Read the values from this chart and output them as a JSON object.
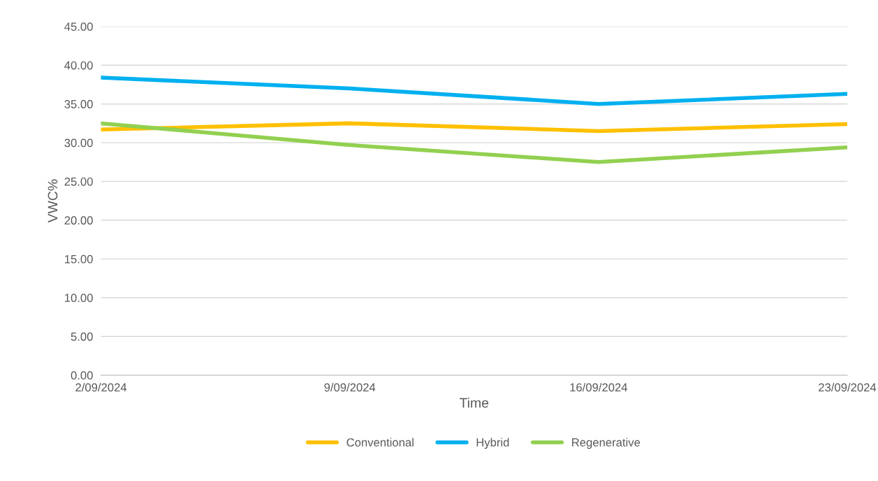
{
  "chart_data": {
    "type": "line",
    "xlabel": "Time",
    "ylabel": "VWC%",
    "x": [
      "2024-09-02",
      "2024-09-09",
      "2024-09-16",
      "2024-09-23"
    ],
    "xlim": [
      "2024-09-02",
      "2024-09-23"
    ],
    "xticks": [
      {
        "value": "2024-09-02",
        "label": "2/09/2024"
      },
      {
        "value": "2024-09-09",
        "label": "9/09/2024"
      },
      {
        "value": "2024-09-16",
        "label": "16/09/2024"
      },
      {
        "value": "2024-09-23",
        "label": "23/09/2024"
      }
    ],
    "ylim": [
      0,
      45
    ],
    "yticks": [
      {
        "value": 0,
        "label": "0.00"
      },
      {
        "value": 5,
        "label": "5.00"
      },
      {
        "value": 10,
        "label": "10.00"
      },
      {
        "value": 15,
        "label": "15.00"
      },
      {
        "value": 20,
        "label": "20.00"
      },
      {
        "value": 25,
        "label": "25.00"
      },
      {
        "value": 30,
        "label": "30.00"
      },
      {
        "value": 35,
        "label": "35.00"
      },
      {
        "value": 40,
        "label": "40.00"
      },
      {
        "value": 45,
        "label": "45.00"
      }
    ],
    "grid": "y",
    "legend": "bottom",
    "series": [
      {
        "name": "Conventional",
        "color": "#ffc000",
        "values": [
          31.7,
          32.5,
          31.5,
          32.4
        ]
      },
      {
        "name": "Hybrid",
        "color": "#00b0f0",
        "values": [
          38.4,
          37.0,
          35.0,
          36.3
        ]
      },
      {
        "name": "Regenerative",
        "color": "#92d050",
        "values": [
          32.5,
          29.7,
          27.5,
          29.4
        ]
      }
    ]
  }
}
